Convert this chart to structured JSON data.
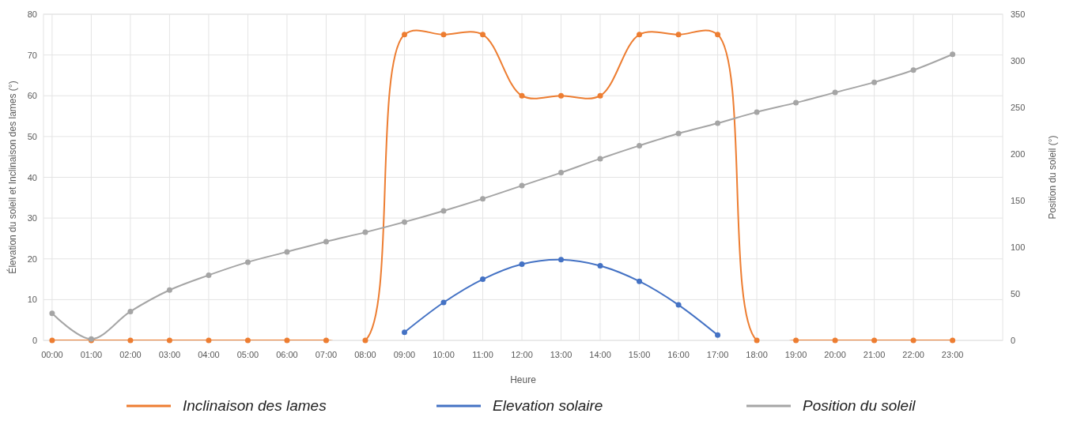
{
  "chart_data": {
    "type": "line",
    "xlabel": "Heure",
    "ylabel": "Élevation du soleil et Inclinaison des lames (°)",
    "y2label": "Position du soleil (°)",
    "categories": [
      "00:00",
      "01:00",
      "02:00",
      "03:00",
      "04:00",
      "05:00",
      "06:00",
      "07:00",
      "08:00",
      "09:00",
      "10:00",
      "11:00",
      "12:00",
      "13:00",
      "14:00",
      "15:00",
      "16:00",
      "17:00",
      "18:00",
      "19:00",
      "20:00",
      "21:00",
      "22:00",
      "23:00"
    ],
    "series": [
      {
        "name": "Inclinaison des lames",
        "color": "#ed7d31",
        "values": [
          0,
          0,
          0,
          0,
          0,
          0,
          0,
          0,
          0,
          75,
          75,
          75,
          60,
          60,
          60,
          75,
          75,
          75,
          0,
          0,
          0,
          0,
          0,
          0
        ]
      },
      {
        "name": "Elevation solaire",
        "color": "#4472c4",
        "values": [
          null,
          null,
          null,
          null,
          null,
          null,
          null,
          null,
          null,
          2,
          9.3,
          15,
          18.7,
          19.8,
          18.3,
          14.5,
          8.7,
          1.3,
          null,
          null,
          null,
          null,
          null,
          null
        ]
      },
      {
        "name": "Position du soleil",
        "color": "#a5a5a5",
        "axis": "y2",
        "values": [
          29,
          1.5,
          31,
          54,
          70,
          84,
          95,
          106,
          116,
          127,
          139,
          152,
          166,
          180,
          195,
          209,
          222,
          233,
          245,
          255,
          266,
          277,
          290,
          307
        ]
      }
    ],
    "ylim": [
      0,
      80
    ],
    "yticks": [
      0,
      10,
      20,
      30,
      40,
      50,
      60,
      70,
      80
    ],
    "y2lim": [
      0,
      350
    ],
    "y2ticks": [
      0,
      50,
      100,
      150,
      200,
      250,
      300,
      350
    ],
    "grid": true,
    "legend": "bottom",
    "marker": "circle",
    "line_style": "solid"
  }
}
